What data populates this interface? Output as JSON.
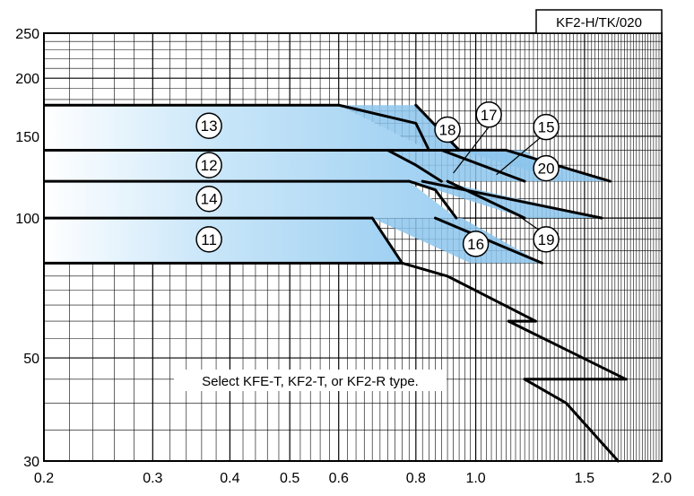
{
  "chart_data": {
    "type": "area",
    "model_tag": "KF2-H/TK/020",
    "note": "Select KFE-T, KF2-T, or KF2-R type.",
    "x_scale": "log",
    "y_scale": "log",
    "xlim": [
      0.2,
      2.0
    ],
    "ylim": [
      30,
      250
    ],
    "grid": true,
    "x_ticks": [
      {
        "value": 0.2,
        "label": "0.2"
      },
      {
        "value": 0.3,
        "label": "0.3"
      },
      {
        "value": 0.4,
        "label": "0.4"
      },
      {
        "value": 0.5,
        "label": "0.5"
      },
      {
        "value": 0.6,
        "label": "0.6"
      },
      {
        "value": 0.8,
        "label": "0.8"
      },
      {
        "value": 1.0,
        "label": "1.0"
      },
      {
        "value": 1.5,
        "label": "1.5"
      },
      {
        "value": 2.0,
        "label": "2.0"
      }
    ],
    "y_ticks": [
      {
        "value": 30,
        "label": "30"
      },
      {
        "value": 50,
        "label": "50"
      },
      {
        "value": 100,
        "label": "100"
      },
      {
        "value": 150,
        "label": "150"
      },
      {
        "value": 200,
        "label": "200"
      },
      {
        "value": 250,
        "label": "250"
      }
    ],
    "colors": {
      "fill_light": "#ddf0fb",
      "fill_dark": "#8cc4ec",
      "outline": "#000000"
    },
    "regions": [
      {
        "label": "13",
        "points": [
          [
            0.2,
            175
          ],
          [
            0.6,
            175
          ],
          [
            0.84,
            140
          ],
          [
            0.2,
            140
          ]
        ]
      },
      {
        "label": "12",
        "points": [
          [
            0.2,
            140
          ],
          [
            0.72,
            140
          ],
          [
            0.88,
            120
          ],
          [
            0.2,
            120
          ]
        ]
      },
      {
        "label": "14",
        "points": [
          [
            0.2,
            120
          ],
          [
            0.78,
            120
          ],
          [
            0.93,
            100
          ],
          [
            0.2,
            100
          ]
        ]
      },
      {
        "label": "11",
        "points": [
          [
            0.2,
            100
          ],
          [
            0.68,
            100
          ],
          [
            0.76,
            80
          ],
          [
            0.2,
            80
          ]
        ]
      },
      {
        "label": "18",
        "points": [
          [
            0.6,
            175
          ],
          [
            0.8,
            175
          ],
          [
            0.94,
            140
          ],
          [
            0.84,
            140
          ]
        ]
      },
      {
        "label": "17",
        "points": [
          [
            0.72,
            140
          ],
          [
            0.88,
            140
          ],
          [
            1.15,
            120
          ],
          [
            0.88,
            120
          ]
        ]
      },
      {
        "label": "15",
        "points": [
          [
            0.88,
            140
          ],
          [
            1.2,
            140
          ],
          [
            1.4,
            120
          ],
          [
            1.15,
            120
          ]
        ]
      },
      {
        "label": "20",
        "points": [
          [
            0.94,
            140
          ],
          [
            1.12,
            140
          ],
          [
            1.65,
            120
          ],
          [
            1.4,
            120
          ]
        ]
      },
      {
        "label": "19",
        "points": [
          [
            0.78,
            120
          ],
          [
            0.88,
            120
          ],
          [
            1.6,
            100
          ],
          [
            1.2,
            100
          ]
        ]
      },
      {
        "label": "16",
        "points": [
          [
            0.68,
            100
          ],
          [
            0.95,
            100
          ],
          [
            1.28,
            80
          ],
          [
            0.98,
            80
          ]
        ]
      }
    ],
    "boundaries": [
      [
        [
          0.6,
          175
        ],
        [
          0.8,
          160
        ],
        [
          0.84,
          140
        ]
      ],
      [
        [
          0.8,
          175
        ],
        [
          0.94,
          140
        ]
      ],
      [
        [
          0.72,
          140
        ],
        [
          0.8,
          130
        ],
        [
          0.88,
          120
        ]
      ],
      [
        [
          0.88,
          140
        ],
        [
          1.2,
          120
        ]
      ],
      [
        [
          0.94,
          140
        ],
        [
          1.12,
          140
        ],
        [
          1.65,
          120
        ]
      ],
      [
        [
          0.78,
          120
        ],
        [
          0.86,
          115
        ],
        [
          0.93,
          100
        ]
      ],
      [
        [
          0.9,
          120
        ],
        [
          1.2,
          100
        ]
      ],
      [
        [
          0.82,
          120
        ],
        [
          1.6,
          100
        ]
      ],
      [
        [
          0.68,
          100
        ],
        [
          0.76,
          80
        ]
      ],
      [
        [
          0.86,
          100
        ],
        [
          1.28,
          80
        ]
      ],
      [
        [
          0.76,
          80
        ],
        [
          0.9,
          75
        ],
        [
          1.25,
          60
        ]
      ],
      [
        [
          1.13,
          60
        ],
        [
          1.25,
          60
        ]
      ],
      [
        [
          1.13,
          60
        ],
        [
          1.75,
          45
        ]
      ],
      [
        [
          1.2,
          45
        ],
        [
          1.75,
          45
        ]
      ],
      [
        [
          1.2,
          45
        ],
        [
          1.4,
          40
        ],
        [
          1.7,
          30
        ]
      ]
    ],
    "markers": [
      {
        "label": "13",
        "x": 0.37,
        "y": 158
      },
      {
        "label": "12",
        "x": 0.37,
        "y": 130
      },
      {
        "label": "14",
        "x": 0.37,
        "y": 110
      },
      {
        "label": "11",
        "x": 0.37,
        "y": 90
      },
      {
        "label": "18",
        "x": 0.9,
        "y": 155
      },
      {
        "label": "17",
        "x": 1.05,
        "y": 167
      },
      {
        "label": "15",
        "x": 1.3,
        "y": 157
      },
      {
        "label": "20",
        "x": 1.3,
        "y": 128
      },
      {
        "label": "19",
        "x": 1.3,
        "y": 90
      },
      {
        "label": "16",
        "x": 1.0,
        "y": 88
      }
    ],
    "leader_lines": [
      [
        [
          1.05,
          157
        ],
        [
          0.92,
          125
        ]
      ],
      [
        [
          1.28,
          150
        ],
        [
          1.08,
          124
        ]
      ],
      [
        [
          1.27,
          94
        ],
        [
          1.15,
          103
        ]
      ]
    ]
  }
}
